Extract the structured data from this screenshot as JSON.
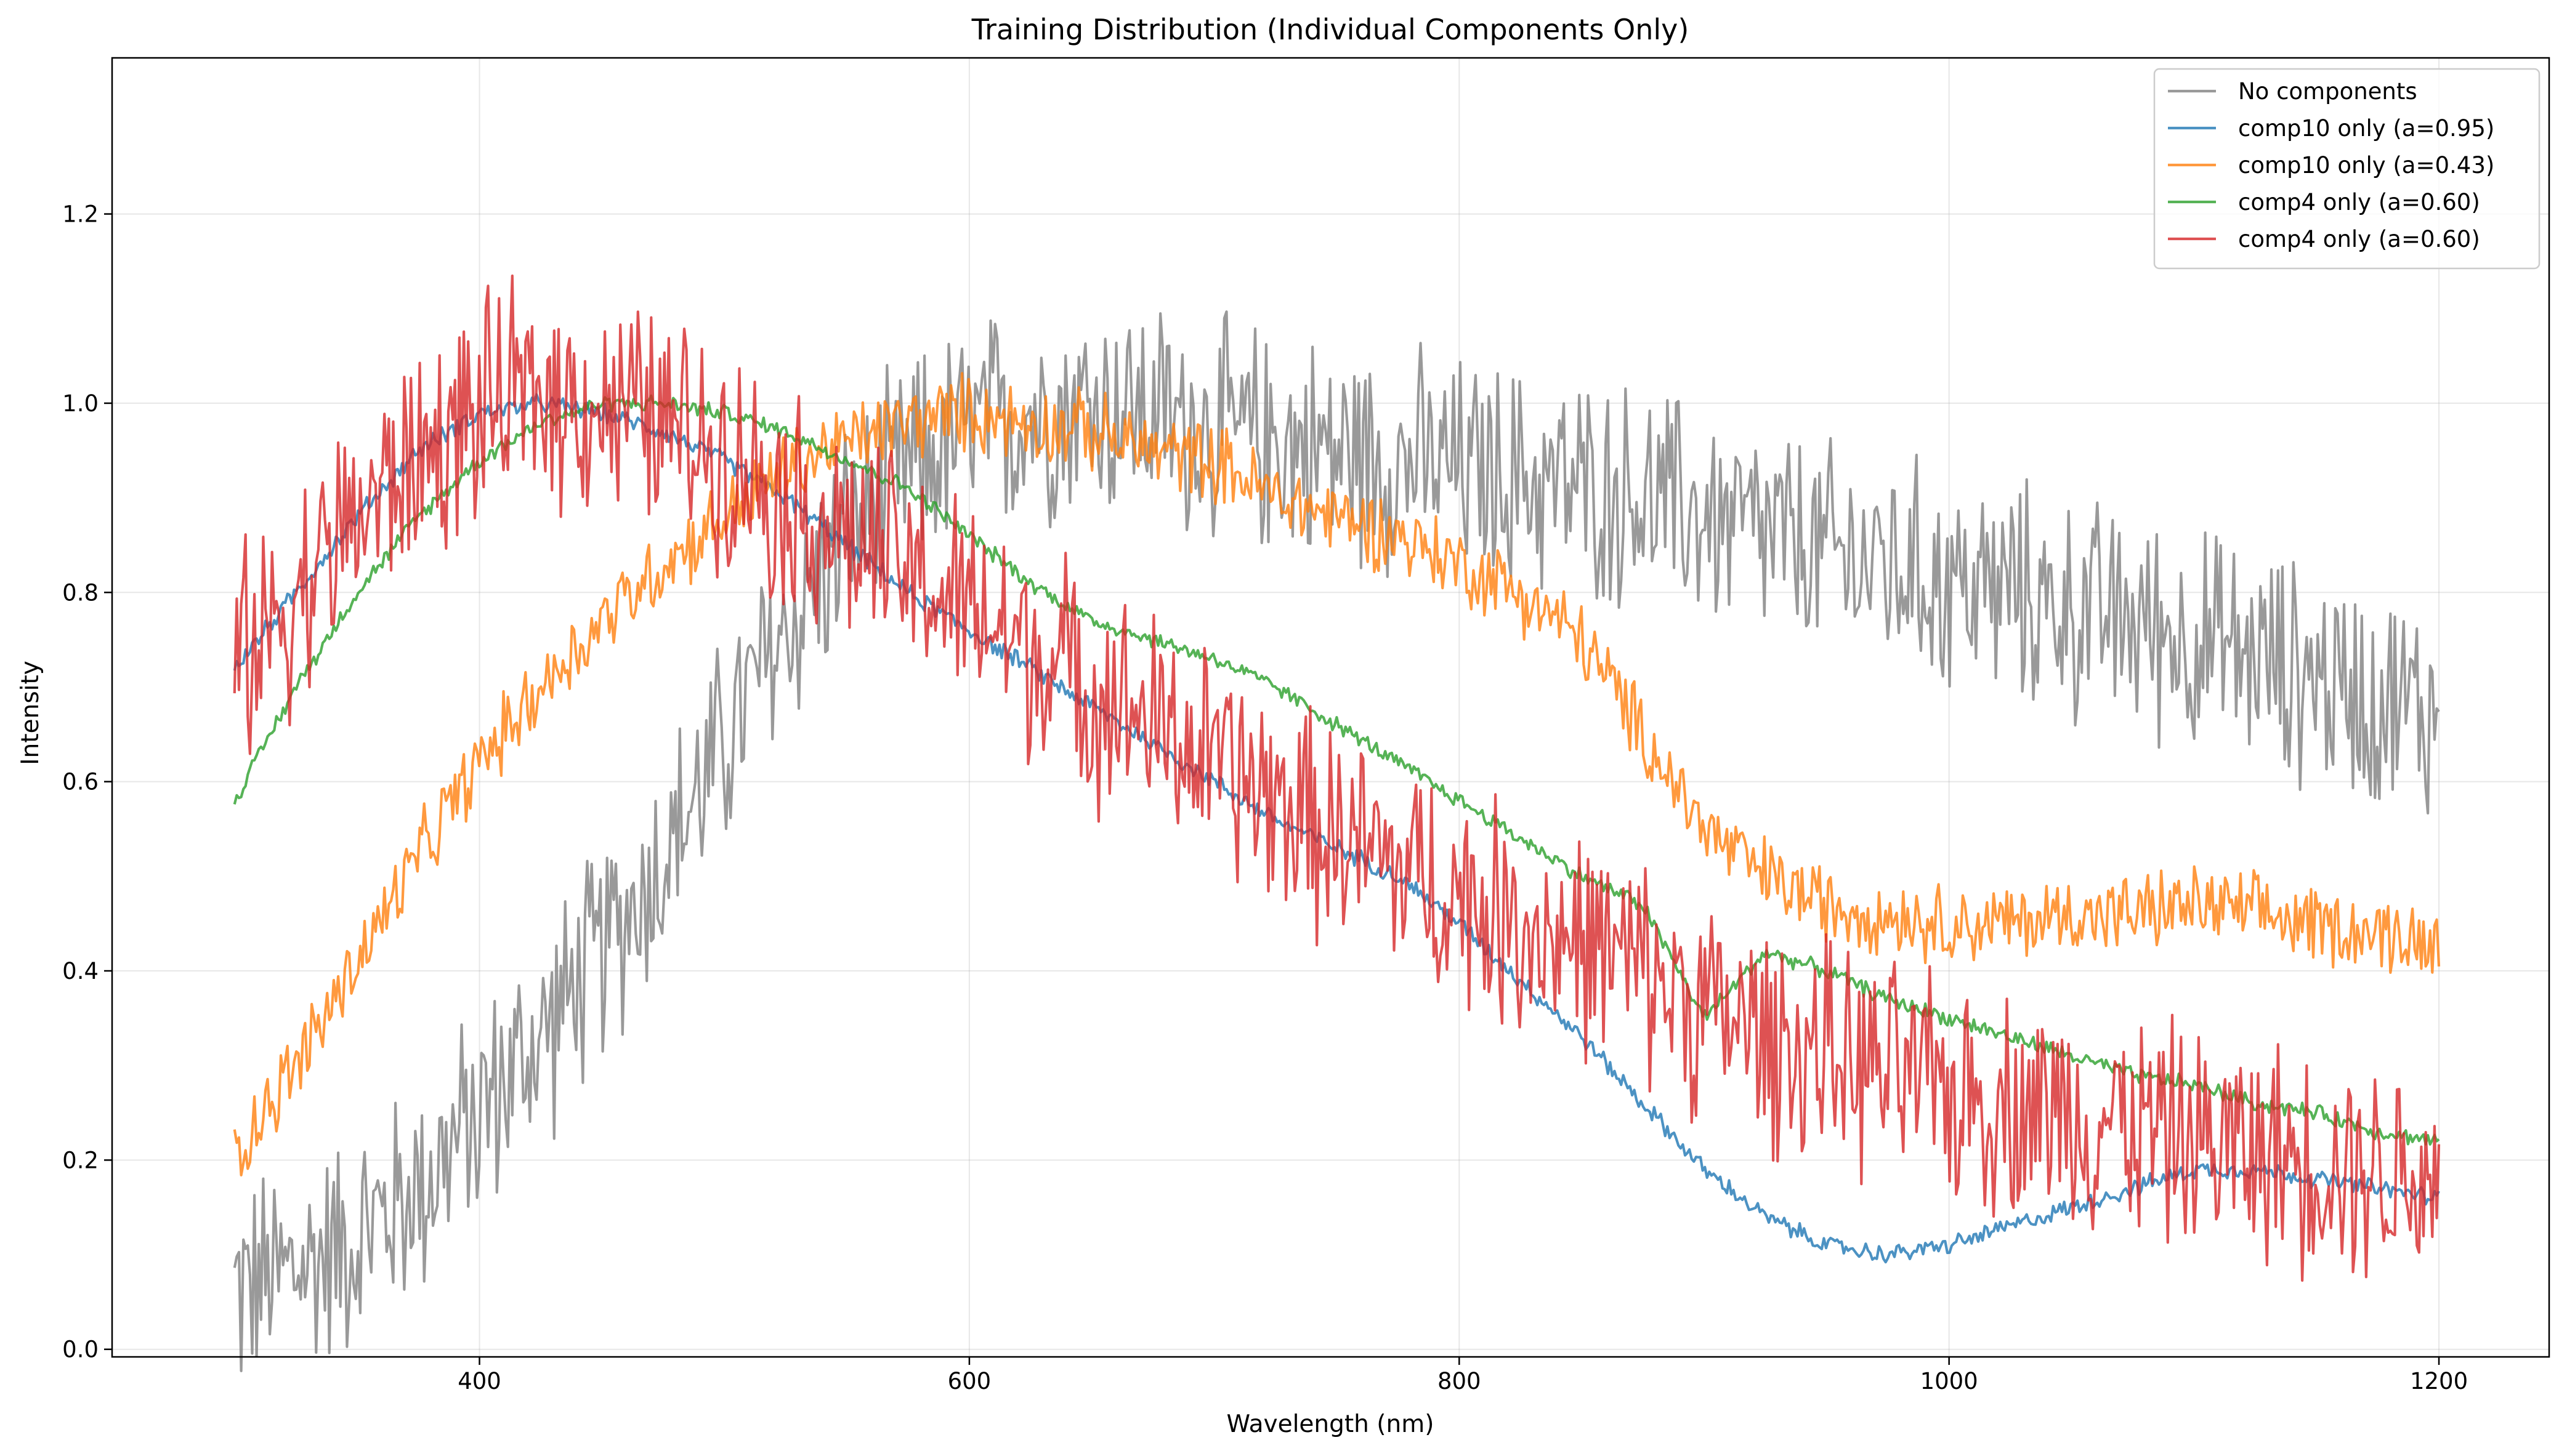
{
  "chart_data": {
    "type": "line",
    "title": "Training Distribution (Individual Components Only)",
    "xlabel": "Wavelength (nm)",
    "ylabel": "Intensity",
    "xlim": [
      250,
      1245
    ],
    "ylim": [
      -0.008,
      1.365
    ],
    "xticks": [
      400,
      600,
      800,
      1000,
      1200
    ],
    "yticks": [
      0.0,
      0.2,
      0.4,
      0.6,
      0.8,
      1.0,
      1.2
    ],
    "xtick_labels": [
      "400",
      "600",
      "800",
      "1000",
      "1200"
    ],
    "ytick_labels": [
      "0.0",
      "0.2",
      "0.4",
      "0.6",
      "0.8",
      "1.0",
      "1.2"
    ],
    "grid": true,
    "legend_position": "top-right",
    "x": [
      300,
      325,
      350,
      375,
      400,
      425,
      450,
      475,
      500,
      525,
      550,
      575,
      600,
      625,
      650,
      675,
      700,
      725,
      750,
      775,
      800,
      825,
      850,
      875,
      900,
      925,
      950,
      975,
      1000,
      1025,
      1050,
      1075,
      1100,
      1125,
      1150,
      1175,
      1200
    ],
    "series": [
      {
        "name": "No components",
        "color": "#7f7f7f",
        "noise": 0.1,
        "values": [
          0.06,
          0.085,
          0.12,
          0.17,
          0.25,
          0.33,
          0.42,
          0.52,
          0.64,
          0.76,
          0.86,
          0.93,
          0.97,
          0.99,
          1.0,
          0.99,
          0.97,
          0.96,
          0.95,
          0.94,
          0.93,
          0.92,
          0.91,
          0.9,
          0.88,
          0.86,
          0.84,
          0.83,
          0.81,
          0.8,
          0.78,
          0.77,
          0.75,
          0.73,
          0.71,
          0.69,
          0.67
        ]
      },
      {
        "name": "comp10 only (a=0.95)",
        "color": "#1f77b4",
        "noise": 0.008,
        "values": [
          0.72,
          0.8,
          0.88,
          0.95,
          0.99,
          1.0,
          0.99,
          0.97,
          0.94,
          0.9,
          0.85,
          0.8,
          0.76,
          0.72,
          0.68,
          0.64,
          0.6,
          0.56,
          0.53,
          0.5,
          0.45,
          0.39,
          0.33,
          0.26,
          0.19,
          0.14,
          0.11,
          0.1,
          0.11,
          0.13,
          0.15,
          0.17,
          0.19,
          0.19,
          0.18,
          0.17,
          0.16
        ]
      },
      {
        "name": "comp10 only (a=0.43)",
        "color": "#ff7f0e",
        "noise": 0.035,
        "values": [
          0.21,
          0.3,
          0.41,
          0.52,
          0.62,
          0.7,
          0.77,
          0.83,
          0.88,
          0.93,
          0.96,
          0.98,
          0.99,
          0.98,
          0.97,
          0.95,
          0.94,
          0.9,
          0.88,
          0.86,
          0.83,
          0.8,
          0.75,
          0.65,
          0.55,
          0.5,
          0.47,
          0.46,
          0.45,
          0.45,
          0.46,
          0.46,
          0.47,
          0.46,
          0.45,
          0.44,
          0.43
        ]
      },
      {
        "name": "comp4 only (a=0.60)",
        "color": "#2ca02c",
        "noise": 0.007,
        "values": [
          0.58,
          0.7,
          0.8,
          0.88,
          0.94,
          0.98,
          1.0,
          1.0,
          0.99,
          0.97,
          0.94,
          0.91,
          0.86,
          0.81,
          0.77,
          0.75,
          0.73,
          0.7,
          0.66,
          0.62,
          0.58,
          0.54,
          0.5,
          0.47,
          0.35,
          0.42,
          0.4,
          0.37,
          0.35,
          0.33,
          0.31,
          0.29,
          0.28,
          0.26,
          0.25,
          0.23,
          0.22
        ]
      },
      {
        "name": "comp4 only (a=0.60)",
        "color": "#d62728",
        "noise": 0.1,
        "values": [
          0.72,
          0.8,
          0.88,
          0.94,
          0.99,
          1.01,
          1.0,
          0.98,
          0.95,
          0.9,
          0.86,
          0.82,
          0.78,
          0.74,
          0.7,
          0.66,
          0.62,
          0.58,
          0.54,
          0.51,
          0.48,
          0.45,
          0.43,
          0.4,
          0.36,
          0.33,
          0.31,
          0.29,
          0.27,
          0.26,
          0.25,
          0.24,
          0.22,
          0.21,
          0.2,
          0.19,
          0.18
        ]
      }
    ]
  }
}
